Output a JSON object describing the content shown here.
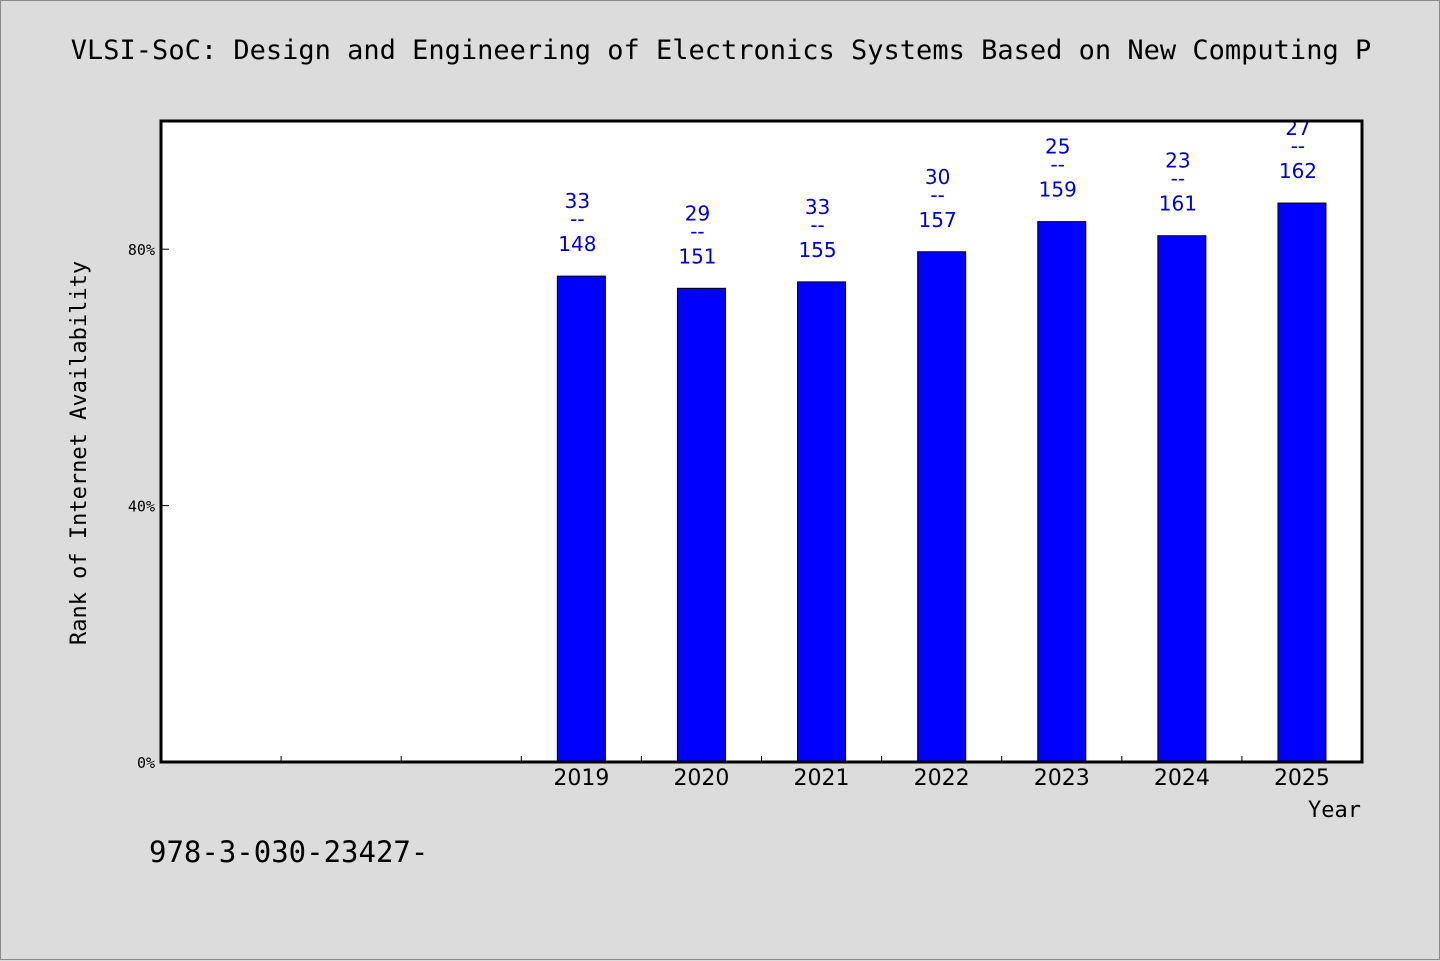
{
  "chart_data": {
    "type": "bar",
    "title": "VLSI-SoC: Design and Engineering of Electronics Systems Based on New Computing P",
    "xlabel": "Year",
    "ylabel": "Rank of Internet Availability",
    "ylim": [
      0,
      100
    ],
    "yticks": [
      "0%",
      "40%",
      "80%"
    ],
    "ytick_values": [
      0,
      40,
      80
    ],
    "categories": [
      "",
      "",
      "",
      "2019",
      "2020",
      "2021",
      "2022",
      "2023",
      "2024",
      "2025"
    ],
    "values": [
      null,
      null,
      null,
      75.8,
      73.9,
      74.9,
      79.6,
      84.3,
      82.1,
      87.2
    ],
    "bar_labels": [
      null,
      null,
      null,
      {
        "top": "33",
        "mid": "--",
        "bottom": "148"
      },
      {
        "top": "29",
        "mid": "--",
        "bottom": "151"
      },
      {
        "top": "33",
        "mid": "--",
        "bottom": "155"
      },
      {
        "top": "30",
        "mid": "--",
        "bottom": "157"
      },
      {
        "top": "25",
        "mid": "--",
        "bottom": "159"
      },
      {
        "top": "23",
        "mid": "--",
        "bottom": "161"
      },
      {
        "top": "27",
        "mid": "--",
        "bottom": "162"
      }
    ],
    "grid": false,
    "legend": "none"
  },
  "footer": {
    "isbn": "978-3-030-23427-"
  },
  "colors": {
    "bar": "#0000ff",
    "bar_label": "#0000cc",
    "plot_background": "#ffffff",
    "page_background": "#dcdcdc",
    "axis": "#000000"
  }
}
